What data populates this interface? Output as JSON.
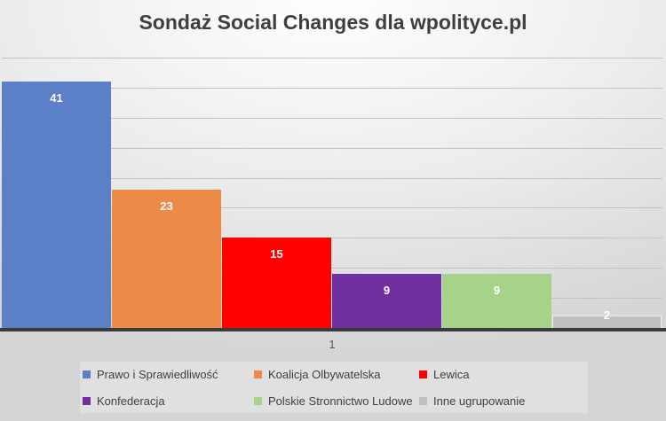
{
  "chart_data": {
    "type": "bar",
    "title": "Sondaż Social Changes dla wpolityce.pl",
    "categories": [
      "1"
    ],
    "series": [
      {
        "name": "Prawo i Sprawiedliwość",
        "values": [
          41
        ],
        "color": "#5B80C7"
      },
      {
        "name": "Koalicja Olbywatelska",
        "values": [
          23
        ],
        "color": "#EC8A47"
      },
      {
        "name": "Lewica",
        "values": [
          15
        ],
        "color": "#FF0000"
      },
      {
        "name": "Konfederacja",
        "values": [
          9
        ],
        "color": "#7030A0"
      },
      {
        "name": "Polskie Stronnictwo Ludowe",
        "values": [
          9
        ],
        "color": "#A6D289"
      },
      {
        "name": "Inne ugrupowanie",
        "values": [
          2
        ],
        "color": "#BFBFBF",
        "border_color": "#EDEDED"
      }
    ],
    "ylim": [
      0,
      45
    ],
    "gridline_step": 5,
    "grid": true,
    "legend_position": "bottom",
    "data_label_position": "inside-end",
    "data_label_color": "#FFFFFF"
  },
  "colors": {
    "title_text": "#3F3F3F",
    "category_label_text": "#595959",
    "legend_text": "#3F3F3F",
    "gridline": "#C2C2C2",
    "axis_line": "#3B3B3B",
    "background_top": "#FFFFFF",
    "background_bottom": "#D5D5D5"
  }
}
